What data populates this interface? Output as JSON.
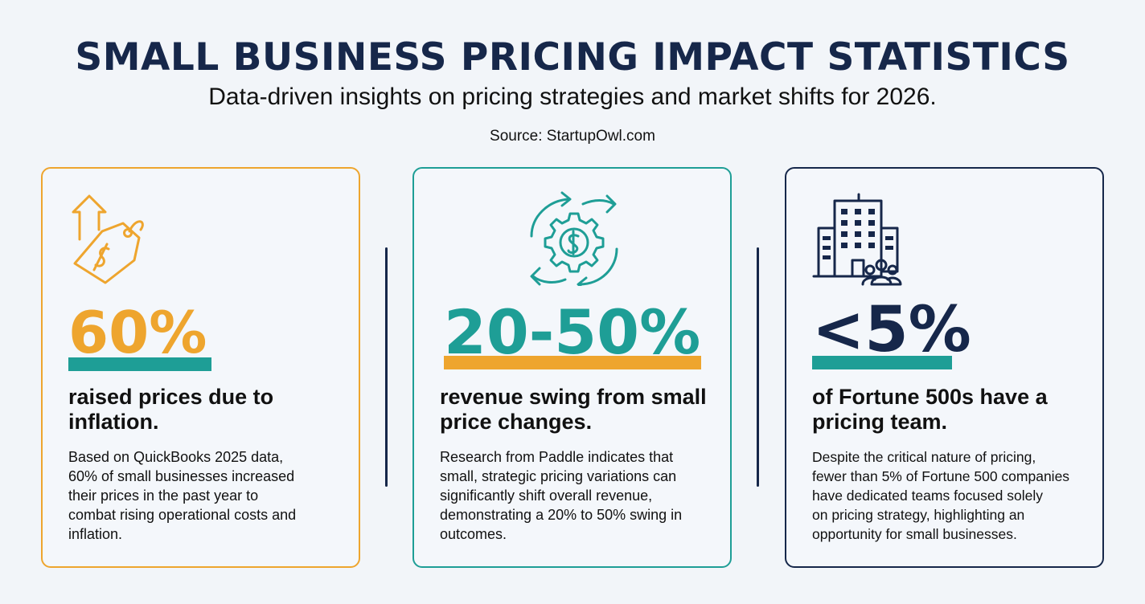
{
  "header": {
    "title": "SMALL BUSINESS PRICING IMPACT STATISTICS",
    "subtitle": "Data-driven insights on pricing strategies and market shifts for 2026.",
    "source": "Source: StartupOwl.com"
  },
  "colors": {
    "accent_orange": "#eea52e",
    "accent_teal": "#1e9e96",
    "navy": "#16274a"
  },
  "cards": [
    {
      "icon": "price-tag-up-arrow-icon",
      "stat": "60%",
      "headline_line1": "raised prices due to",
      "headline_line2": "inflation.",
      "body_lines": [
        "Based on QuickBooks 2025 data,",
        "60% of small businesses increased",
        "their prices in the past year to",
        "combat rising operational costs and",
        "inflation."
      ]
    },
    {
      "icon": "dollar-gear-cycle-icon",
      "stat": "20-50%",
      "headline_line1": "revenue swing from small",
      "headline_line2": "price changes.",
      "body_lines": [
        "Research from Paddle indicates that",
        "small, strategic pricing variations can",
        "significantly shift overall revenue,",
        "demonstrating a 20% to 50% swing in",
        "outcomes."
      ]
    },
    {
      "icon": "office-building-team-icon",
      "stat": "<5%",
      "headline_line1": "of Fortune 500s have a",
      "headline_line2": "pricing team.",
      "body_lines": [
        "Despite the critical nature of pricing,",
        "fewer than 5% of Fortune 500 companies",
        "have dedicated teams focused solely",
        "on pricing strategy, highlighting an",
        "opportunity for small businesses."
      ]
    }
  ]
}
